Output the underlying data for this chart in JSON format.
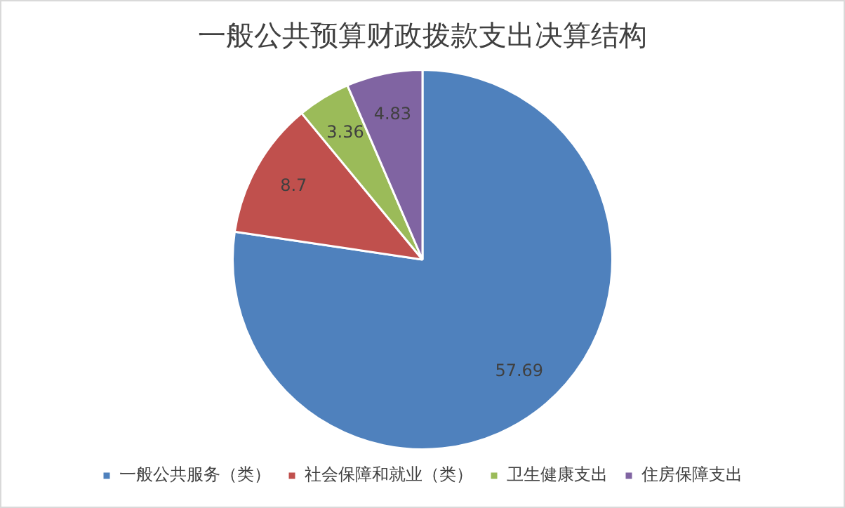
{
  "chart_data": {
    "type": "pie",
    "title": "一般公共预算财政拨款支出决算结构",
    "categories": [
      "一般公共服务（类）",
      "社会保障和就业（类）",
      "卫生健康支出",
      "住房保障支出"
    ],
    "values": [
      57.69,
      8.7,
      3.36,
      4.83
    ],
    "colors": [
      "#4f81bd",
      "#c0504d",
      "#9bbb59",
      "#8064a2"
    ],
    "data_labels": true,
    "legend": "bottom"
  }
}
